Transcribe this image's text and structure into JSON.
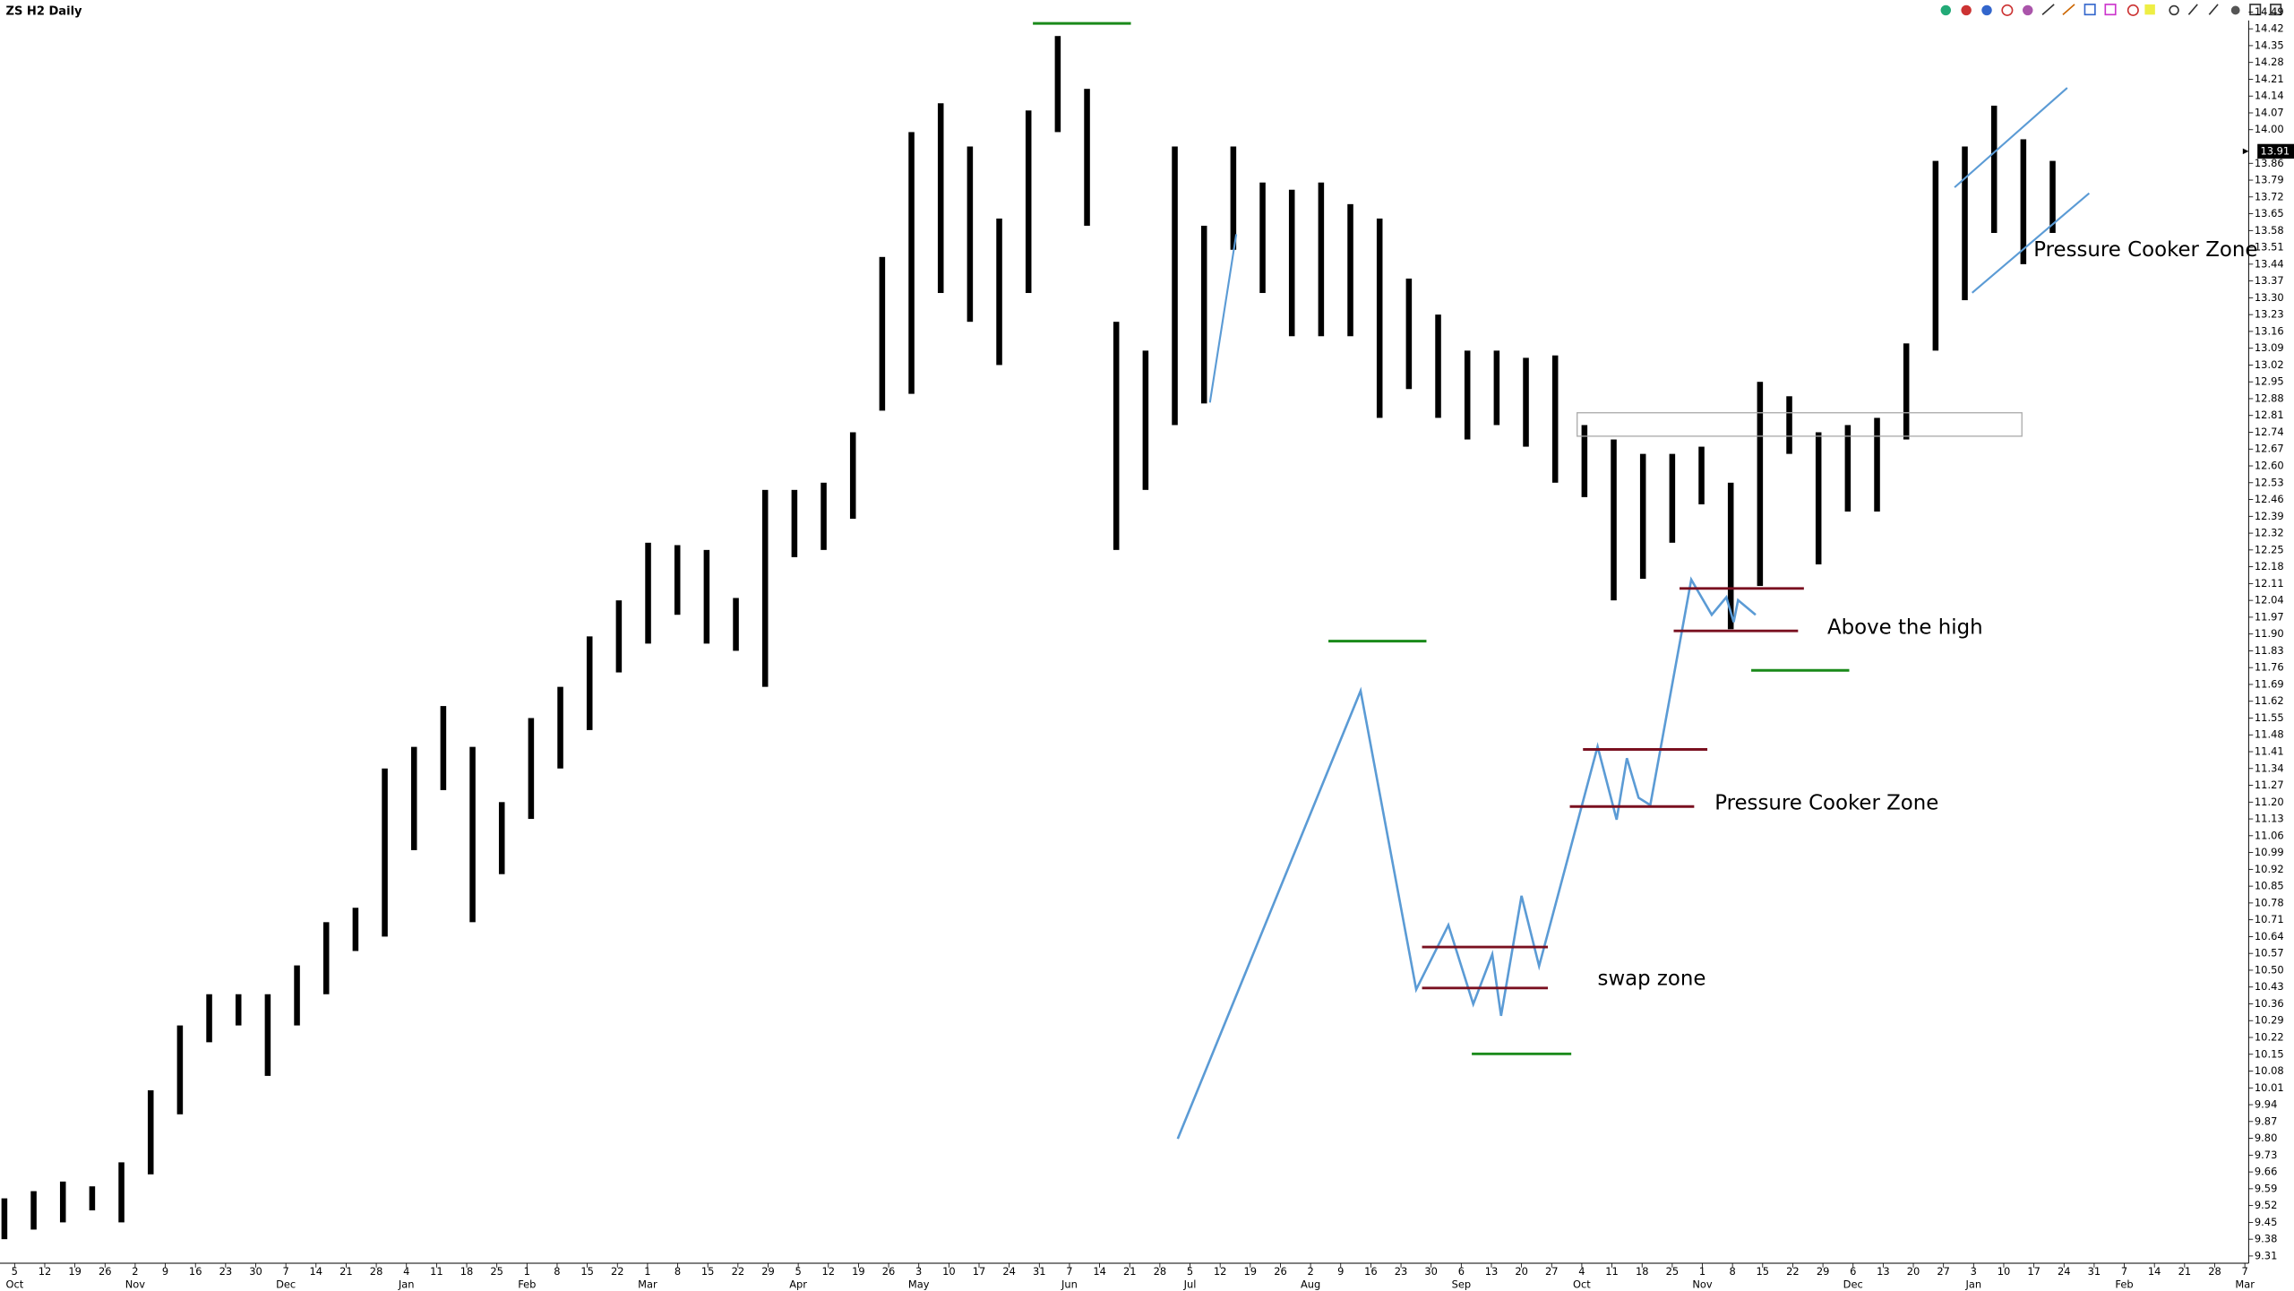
{
  "chart_data": {
    "type": "ohlc",
    "title": "ZS H2 Daily",
    "high": [
      9.55,
      9.58,
      9.62,
      9.6,
      9.7,
      10.0,
      10.27,
      10.4,
      10.4,
      10.4,
      10.52,
      10.7,
      10.76,
      11.34,
      11.43,
      11.6,
      11.43,
      11.2,
      11.55,
      11.68,
      11.89,
      12.04,
      12.28,
      12.27,
      12.25,
      12.05,
      12.5,
      12.5,
      12.53,
      12.74,
      13.47,
      13.99,
      14.11,
      13.93,
      13.63,
      14.08,
      14.39,
      14.17,
      13.2,
      13.08,
      13.93,
      13.6,
      13.93,
      13.78,
      13.75,
      13.78,
      13.69,
      13.63,
      13.38,
      13.23,
      13.08,
      13.08,
      13.05,
      13.06,
      12.77,
      12.71,
      12.65,
      12.65,
      12.68,
      12.53,
      12.95,
      12.89,
      12.74,
      12.77,
      12.8,
      13.11,
      13.87,
      13.93,
      14.1,
      13.96,
      13.87
    ],
    "low": [
      9.38,
      9.42,
      9.45,
      9.5,
      9.45,
      9.65,
      9.9,
      10.2,
      10.27,
      10.06,
      10.27,
      10.4,
      10.58,
      10.64,
      11.0,
      11.25,
      10.7,
      10.9,
      11.13,
      11.34,
      11.5,
      11.74,
      11.86,
      11.98,
      11.86,
      11.83,
      11.68,
      12.22,
      12.25,
      12.38,
      12.83,
      12.9,
      13.32,
      13.2,
      13.02,
      13.32,
      13.99,
      13.6,
      12.25,
      12.5,
      12.77,
      12.86,
      13.5,
      13.32,
      13.14,
      13.14,
      13.14,
      12.8,
      12.92,
      12.8,
      12.71,
      12.77,
      12.68,
      12.53,
      12.47,
      12.04,
      12.13,
      12.28,
      12.44,
      11.92,
      12.1,
      12.65,
      12.19,
      12.41,
      12.41,
      12.71,
      13.08,
      13.29,
      13.57,
      13.44,
      13.57
    ],
    "color": "#000000",
    "ylim": [
      9.28,
      14.54
    ],
    "yticks": [
      14.49,
      14.42,
      14.35,
      14.28,
      14.21,
      14.14,
      14.07,
      {
        "value": 14.0,
        "label": "14.00"
      },
      13.86,
      13.79,
      13.72,
      13.65,
      13.58,
      13.51,
      13.44,
      13.37,
      {
        "value": 13.3,
        "label": "13.30"
      },
      13.23,
      13.16,
      13.09,
      13.02,
      12.95,
      12.88,
      12.81,
      12.74,
      12.67,
      {
        "value": 12.6,
        "label": "12.60"
      },
      12.53,
      12.46,
      12.39,
      12.32,
      12.25,
      12.18,
      12.11,
      12.04,
      11.97,
      {
        "value": 11.9,
        "label": "11.90"
      },
      11.83,
      11.76,
      11.69,
      11.62,
      11.55,
      11.48,
      11.41,
      11.34,
      11.27,
      {
        "value": 11.2,
        "label": "11.20"
      },
      11.13,
      11.06,
      10.99,
      10.92,
      10.85,
      10.78,
      10.71,
      10.64,
      10.57,
      {
        "value": 10.5,
        "label": "10.50"
      },
      10.43,
      10.36,
      10.29,
      10.22,
      10.15,
      10.08,
      10.01,
      9.94,
      9.87,
      {
        "value": 9.8,
        "label": "9.80"
      },
      9.73,
      9.66,
      9.59,
      9.52,
      9.45,
      9.38,
      9.31
    ],
    "last_price": 13.91,
    "xticks": [
      {
        "day": "5",
        "month": "Oct"
      },
      {
        "day": "12"
      },
      {
        "day": "19"
      },
      {
        "day": "26"
      },
      {
        "day": "2",
        "month": "Nov"
      },
      {
        "day": "9"
      },
      {
        "day": "16"
      },
      {
        "day": "23"
      },
      {
        "day": "30"
      },
      {
        "day": "7",
        "month": "Dec"
      },
      {
        "day": "14"
      },
      {
        "day": "21"
      },
      {
        "day": "28"
      },
      {
        "day": "4",
        "month": "Jan"
      },
      {
        "day": "11"
      },
      {
        "day": "18"
      },
      {
        "day": "25"
      },
      {
        "day": "1",
        "month": "Feb"
      },
      {
        "day": "8"
      },
      {
        "day": "15"
      },
      {
        "day": "22"
      },
      {
        "day": "1",
        "month": "Mar"
      },
      {
        "day": "8"
      },
      {
        "day": "15"
      },
      {
        "day": "22"
      },
      {
        "day": "29"
      },
      {
        "day": "5",
        "month": "Apr"
      },
      {
        "day": "12"
      },
      {
        "day": "19"
      },
      {
        "day": "26"
      },
      {
        "day": "3",
        "month": "May"
      },
      {
        "day": "10"
      },
      {
        "day": "17"
      },
      {
        "day": "24"
      },
      {
        "day": "31"
      },
      {
        "day": "7",
        "month": "Jun"
      },
      {
        "day": "14"
      },
      {
        "day": "21"
      },
      {
        "day": "28"
      },
      {
        "day": "5",
        "month": "Jul"
      },
      {
        "day": "12"
      },
      {
        "day": "19"
      },
      {
        "day": "26"
      },
      {
        "day": "2",
        "month": "Aug"
      },
      {
        "day": "9"
      },
      {
        "day": "16"
      },
      {
        "day": "23"
      },
      {
        "day": "30"
      },
      {
        "day": "6",
        "month": "Sep"
      },
      {
        "day": "13"
      },
      {
        "day": "20"
      },
      {
        "day": "27"
      },
      {
        "day": "4",
        "month": "Oct"
      },
      {
        "day": "11"
      },
      {
        "day": "18"
      },
      {
        "day": "25"
      },
      {
        "day": "1",
        "month": "Nov"
      },
      {
        "day": "8"
      },
      {
        "day": "15"
      },
      {
        "day": "22"
      },
      {
        "day": "29"
      },
      {
        "day": "6",
        "month": "Dec"
      },
      {
        "day": "13"
      },
      {
        "day": "20"
      },
      {
        "day": "27"
      },
      {
        "day": "3",
        "month": "Jan"
      },
      {
        "day": "10"
      },
      {
        "day": "17"
      },
      {
        "day": "24"
      },
      {
        "day": "31"
      },
      {
        "day": "7",
        "month": "Feb"
      },
      {
        "day": "14"
      },
      {
        "day": "21"
      },
      {
        "day": "28"
      },
      {
        "day": "7",
        "month": "Mar"
      }
    ],
    "annotations": [
      "swap zone",
      "Pressure Cooker Zone",
      "Above the high",
      "Pressure Cooker Zone"
    ]
  }
}
